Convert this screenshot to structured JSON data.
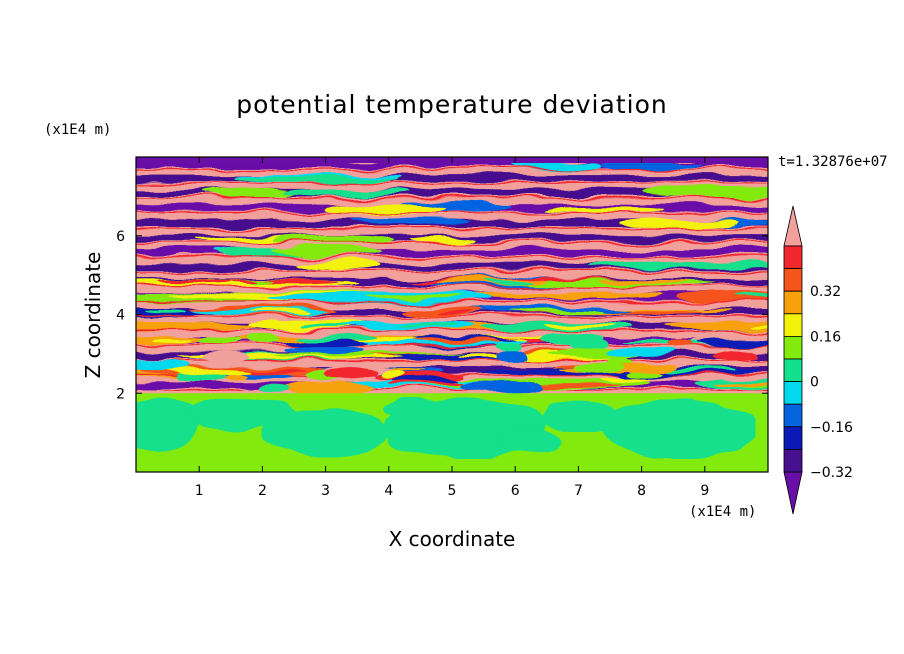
{
  "chart_data": {
    "type": "heatmap",
    "title": "potential temperature deviation",
    "xlabel": "X coordinate",
    "ylabel": "Z coordinate",
    "x_unit": "(x1E4 m)",
    "y_unit": "(x1E4 m)",
    "time_label": "t=1.32876e+07",
    "xlim": [
      0,
      10
    ],
    "ylim": [
      0,
      8
    ],
    "x_ticks": [
      "1",
      "2",
      "3",
      "4",
      "5",
      "6",
      "7",
      "8",
      "9"
    ],
    "y_ticks": [
      "2",
      "4",
      "6"
    ],
    "colorbar": {
      "levels": [
        -0.48,
        -0.4,
        -0.32,
        -0.24,
        -0.16,
        -0.08,
        0,
        0.08,
        0.16,
        0.24,
        0.32,
        0.4,
        0.48
      ],
      "tick_labels": [
        "0.32",
        "0.16",
        "0",
        "−0.16",
        "−0.32"
      ],
      "colors": [
        "#6a0ea8",
        "#46108f",
        "#0b1ab4",
        "#0563e0",
        "#00d9ee",
        "#12e08c",
        "#82ea0d",
        "#f2f20a",
        "#f7a20d",
        "#f5541b",
        "#f2262d",
        "#f2a09c"
      ]
    },
    "structure": {
      "lower_region_top": 2,
      "lower_region_values": [
        0.04,
        -0.04
      ],
      "upper_region_values": [
        0.48,
        -0.48
      ],
      "layer_count_upper": 16
    }
  }
}
